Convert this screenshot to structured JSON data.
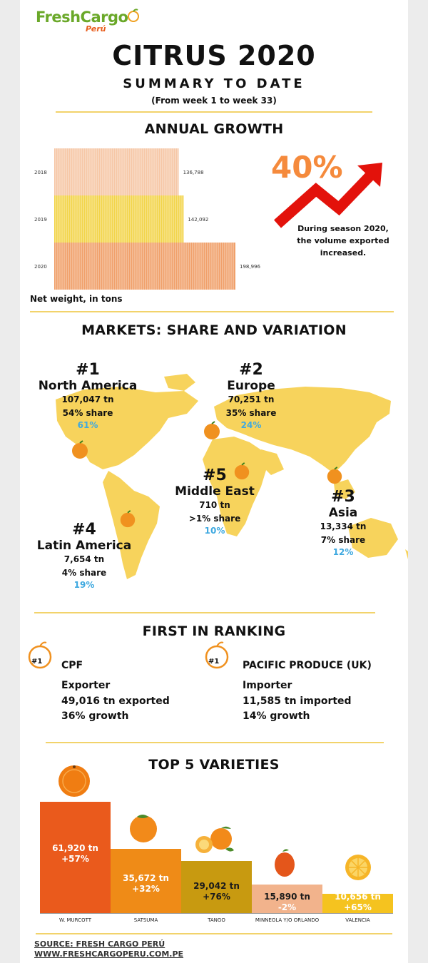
{
  "brand": {
    "name": "FreshCargo",
    "sub": "Perú",
    "colors": {
      "fresh": "#6aa829",
      "cargo": "#e85d1c"
    }
  },
  "header": {
    "title": "CITRUS 2020",
    "subtitle": "SUMMARY TO DATE",
    "range": "(From week 1 to week 33)"
  },
  "growth": {
    "section_title": "ANNUAL GROWTH",
    "percent": "40%",
    "note": "During season 2020, the volume exported increased.",
    "axis_note": "Net weight, in tons"
  },
  "chart_data": [
    {
      "type": "bar",
      "orientation": "horizontal",
      "categories": [
        "2018",
        "2019",
        "2020"
      ],
      "values": [
        136788,
        142092,
        198996
      ],
      "value_labels": [
        "136,788",
        "142,092",
        "198,996"
      ],
      "xlabel": "Net weight, in tons",
      "colors": [
        "#f6c7a6",
        "#f2d44a",
        "#f0a06a"
      ]
    },
    {
      "type": "bar",
      "categories": [
        "W. MURCOTT",
        "SATSUMA",
        "TANGO",
        "MINNEOLA Y/O ORLANDO",
        "VALENCIA"
      ],
      "values": [
        61920,
        35672,
        29042,
        15890,
        10656
      ],
      "value_labels": [
        "61,920 tn",
        "35,672 tn",
        "29,042 tn",
        "15,890 tn",
        "10,656 tn"
      ],
      "growth_labels": [
        "+57%",
        "+32%",
        "+76%",
        "-2%",
        "+65%"
      ],
      "colors": [
        "#ea5a1c",
        "#ef8b17",
        "#c89a10",
        "#f2b38c",
        "#f5c31f"
      ]
    }
  ],
  "markets": {
    "section_title": "MARKETS: SHARE AND VARIATION",
    "items": [
      {
        "rank": "#1",
        "name": "North America",
        "tons": "107,047 tn",
        "share": "54% share",
        "variation": "61%"
      },
      {
        "rank": "#2",
        "name": "Europe",
        "tons": "70,251 tn",
        "share": "35% share",
        "variation": "24%"
      },
      {
        "rank": "#5",
        "name": "Middle East",
        "tons": "710 tn",
        "share": ">1% share",
        "variation": "10%"
      },
      {
        "rank": "#3",
        "name": "Asia",
        "tons": "13,334 tn",
        "share": "7% share",
        "variation": "12%"
      },
      {
        "rank": "#4",
        "name": "Latin America",
        "tons": "7,654 tn",
        "share": "4% share",
        "variation": "19%"
      }
    ]
  },
  "ranking": {
    "section_title": "FIRST IN RANKING",
    "items": [
      {
        "badge": "#1",
        "name": "CPF",
        "role": "Exporter",
        "tons": "49,016 tn exported",
        "growth": "36% growth"
      },
      {
        "badge": "#1",
        "name": "PACIFIC PRODUCE (UK)",
        "role": "Importer",
        "tons": "11,585 tn imported",
        "growth": "14% growth"
      }
    ]
  },
  "varieties": {
    "section_title": "TOP 5 VARIETIES"
  },
  "footer": {
    "source": "SOURCE: FRESH CARGO PERÚ",
    "url": "WWW.FRESHCARGOPERU.COM.PE"
  },
  "icons": [
    "orange-icon",
    "growth-arrow-icon",
    "world-map-icon",
    "ranking-badge-icon"
  ]
}
